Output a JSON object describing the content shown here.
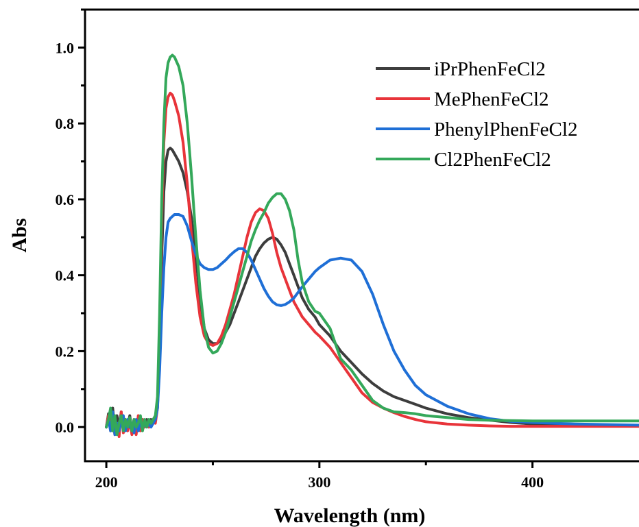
{
  "chart_data": {
    "type": "line",
    "title": "",
    "xlabel": "Wavelength (nm)",
    "ylabel": "Abs",
    "xlim": [
      190,
      450
    ],
    "ylim": [
      -0.09,
      1.1
    ],
    "x_ticks": [
      200,
      300,
      400
    ],
    "y_ticks": [
      0.0,
      0.2,
      0.4,
      0.6,
      0.8,
      1.0
    ],
    "x_tick_labels": [
      "200",
      "300",
      "400"
    ],
    "y_tick_labels": [
      "0.0",
      "0.2",
      "0.4",
      "0.6",
      "0.8",
      "1.0"
    ],
    "grid": false,
    "legend_position": "top-right",
    "series": [
      {
        "name": "iPrPhenFeCl2",
        "color": "#3d3d3d",
        "x": [
          200,
          201,
          202,
          203,
          204,
          205,
          206,
          207,
          208,
          209,
          210,
          211,
          212,
          213,
          214,
          215,
          216,
          217,
          218,
          219,
          220,
          221,
          222,
          223,
          224,
          225,
          226,
          227,
          228,
          229,
          230,
          231,
          232,
          234,
          236,
          238,
          240,
          242,
          244,
          246,
          248,
          250,
          252,
          254,
          256,
          258,
          260,
          262,
          264,
          266,
          268,
          270,
          272,
          274,
          276,
          278,
          280,
          282,
          284,
          286,
          288,
          290,
          292,
          295,
          298,
          300,
          305,
          310,
          315,
          320,
          325,
          330,
          335,
          340,
          345,
          350,
          360,
          370,
          380,
          390,
          400,
          420,
          450
        ],
        "values": [
          0.0,
          0.035,
          0.01,
          0.05,
          -0.01,
          0.03,
          0.0,
          0.04,
          -0.01,
          0.02,
          0.005,
          0.03,
          -0.01,
          0.02,
          0.0,
          0.025,
          -0.005,
          0.02,
          0.01,
          0.02,
          0.0,
          0.02,
          0.01,
          0.02,
          0.05,
          0.2,
          0.45,
          0.62,
          0.7,
          0.73,
          0.735,
          0.73,
          0.72,
          0.7,
          0.67,
          0.62,
          0.55,
          0.45,
          0.34,
          0.26,
          0.23,
          0.22,
          0.22,
          0.23,
          0.25,
          0.27,
          0.3,
          0.33,
          0.36,
          0.39,
          0.42,
          0.45,
          0.47,
          0.485,
          0.495,
          0.5,
          0.495,
          0.48,
          0.46,
          0.43,
          0.4,
          0.37,
          0.34,
          0.31,
          0.29,
          0.27,
          0.24,
          0.2,
          0.17,
          0.14,
          0.115,
          0.095,
          0.08,
          0.07,
          0.06,
          0.05,
          0.035,
          0.025,
          0.018,
          0.012,
          0.008,
          0.006,
          0.004
        ]
      },
      {
        "name": "MePhenFeCl2",
        "color": "#e8343a",
        "x": [
          200,
          201,
          202,
          203,
          204,
          205,
          206,
          207,
          208,
          209,
          210,
          211,
          212,
          213,
          214,
          215,
          216,
          217,
          218,
          219,
          220,
          221,
          222,
          223,
          224,
          225,
          226,
          227,
          228,
          229,
          230,
          231,
          232,
          234,
          236,
          238,
          240,
          242,
          244,
          246,
          248,
          250,
          252,
          254,
          256,
          258,
          260,
          262,
          264,
          266,
          268,
          270,
          272,
          274,
          276,
          278,
          280,
          282,
          284,
          286,
          288,
          290,
          292,
          295,
          298,
          300,
          305,
          310,
          315,
          320,
          325,
          330,
          335,
          340,
          345,
          350,
          360,
          370,
          380,
          390,
          400,
          420,
          450
        ],
        "values": [
          0.0,
          0.03,
          -0.01,
          0.02,
          -0.02,
          0.01,
          -0.025,
          0.04,
          -0.015,
          0.02,
          -0.01,
          0.015,
          -0.02,
          0.01,
          -0.02,
          0.03,
          -0.01,
          0.02,
          0.0,
          0.01,
          0.0,
          0.01,
          0.02,
          0.01,
          0.05,
          0.25,
          0.55,
          0.75,
          0.84,
          0.87,
          0.88,
          0.875,
          0.86,
          0.82,
          0.75,
          0.64,
          0.5,
          0.38,
          0.29,
          0.24,
          0.22,
          0.215,
          0.22,
          0.24,
          0.27,
          0.31,
          0.35,
          0.4,
          0.45,
          0.5,
          0.54,
          0.565,
          0.575,
          0.57,
          0.55,
          0.51,
          0.46,
          0.42,
          0.39,
          0.36,
          0.33,
          0.31,
          0.29,
          0.27,
          0.25,
          0.24,
          0.21,
          0.17,
          0.13,
          0.09,
          0.065,
          0.05,
          0.038,
          0.028,
          0.02,
          0.014,
          0.008,
          0.005,
          0.003,
          0.002,
          0.002,
          0.002,
          0.002
        ]
      },
      {
        "name": "PhenylPhenFeCl2",
        "color": "#1f6fd6",
        "x": [
          200,
          201,
          202,
          203,
          204,
          205,
          206,
          207,
          208,
          209,
          210,
          211,
          212,
          213,
          214,
          215,
          216,
          217,
          218,
          219,
          220,
          221,
          222,
          223,
          224,
          225,
          226,
          227,
          228,
          229,
          230,
          231,
          232,
          234,
          236,
          238,
          240,
          242,
          244,
          246,
          248,
          250,
          252,
          254,
          256,
          258,
          260,
          262,
          264,
          266,
          268,
          270,
          272,
          274,
          276,
          278,
          280,
          282,
          284,
          286,
          288,
          290,
          292,
          295,
          298,
          300,
          305,
          310,
          315,
          320,
          325,
          330,
          335,
          340,
          345,
          350,
          360,
          370,
          380,
          390,
          400,
          420,
          450
        ],
        "values": [
          0.0,
          0.02,
          -0.01,
          0.04,
          -0.02,
          0.01,
          -0.01,
          0.02,
          0.03,
          -0.01,
          0.02,
          0.0,
          0.01,
          -0.015,
          0.02,
          -0.01,
          0.02,
          -0.005,
          0.01,
          0.0,
          0.01,
          0.0,
          0.01,
          0.02,
          0.05,
          0.15,
          0.3,
          0.42,
          0.5,
          0.54,
          0.55,
          0.555,
          0.56,
          0.56,
          0.555,
          0.53,
          0.49,
          0.455,
          0.43,
          0.42,
          0.415,
          0.415,
          0.42,
          0.43,
          0.44,
          0.452,
          0.462,
          0.47,
          0.47,
          0.46,
          0.44,
          0.415,
          0.39,
          0.365,
          0.345,
          0.33,
          0.322,
          0.32,
          0.323,
          0.33,
          0.34,
          0.355,
          0.37,
          0.39,
          0.41,
          0.42,
          0.44,
          0.445,
          0.44,
          0.41,
          0.35,
          0.27,
          0.2,
          0.15,
          0.11,
          0.085,
          0.055,
          0.035,
          0.022,
          0.015,
          0.012,
          0.008,
          0.005
        ]
      },
      {
        "name": "Cl2PhenFeCl2",
        "color": "#34a85a",
        "x": [
          200,
          201,
          202,
          203,
          204,
          205,
          206,
          207,
          208,
          209,
          210,
          211,
          212,
          213,
          214,
          215,
          216,
          217,
          218,
          219,
          220,
          221,
          222,
          223,
          224,
          225,
          226,
          227,
          228,
          229,
          230,
          231,
          232,
          234,
          236,
          238,
          240,
          242,
          244,
          246,
          248,
          250,
          252,
          254,
          256,
          258,
          260,
          262,
          264,
          266,
          268,
          270,
          272,
          274,
          276,
          278,
          280,
          282,
          284,
          286,
          288,
          290,
          292,
          295,
          298,
          300,
          305,
          310,
          315,
          320,
          325,
          330,
          335,
          340,
          345,
          350,
          360,
          370,
          380,
          390,
          400,
          420,
          450
        ],
        "values": [
          0.0,
          0.02,
          0.05,
          -0.01,
          0.03,
          -0.02,
          0.01,
          0.03,
          -0.01,
          0.02,
          0.0,
          0.025,
          -0.01,
          0.02,
          0.0,
          0.01,
          0.03,
          -0.01,
          0.02,
          0.0,
          0.02,
          0.01,
          0.02,
          0.03,
          0.08,
          0.3,
          0.6,
          0.8,
          0.92,
          0.96,
          0.975,
          0.98,
          0.975,
          0.95,
          0.9,
          0.8,
          0.66,
          0.5,
          0.36,
          0.26,
          0.21,
          0.195,
          0.2,
          0.22,
          0.25,
          0.29,
          0.33,
          0.37,
          0.41,
          0.45,
          0.49,
          0.52,
          0.545,
          0.565,
          0.59,
          0.605,
          0.615,
          0.615,
          0.6,
          0.57,
          0.52,
          0.44,
          0.38,
          0.33,
          0.305,
          0.3,
          0.26,
          0.18,
          0.15,
          0.11,
          0.07,
          0.05,
          0.04,
          0.038,
          0.035,
          0.03,
          0.025,
          0.02,
          0.018,
          0.017,
          0.016,
          0.016,
          0.016
        ]
      }
    ]
  }
}
